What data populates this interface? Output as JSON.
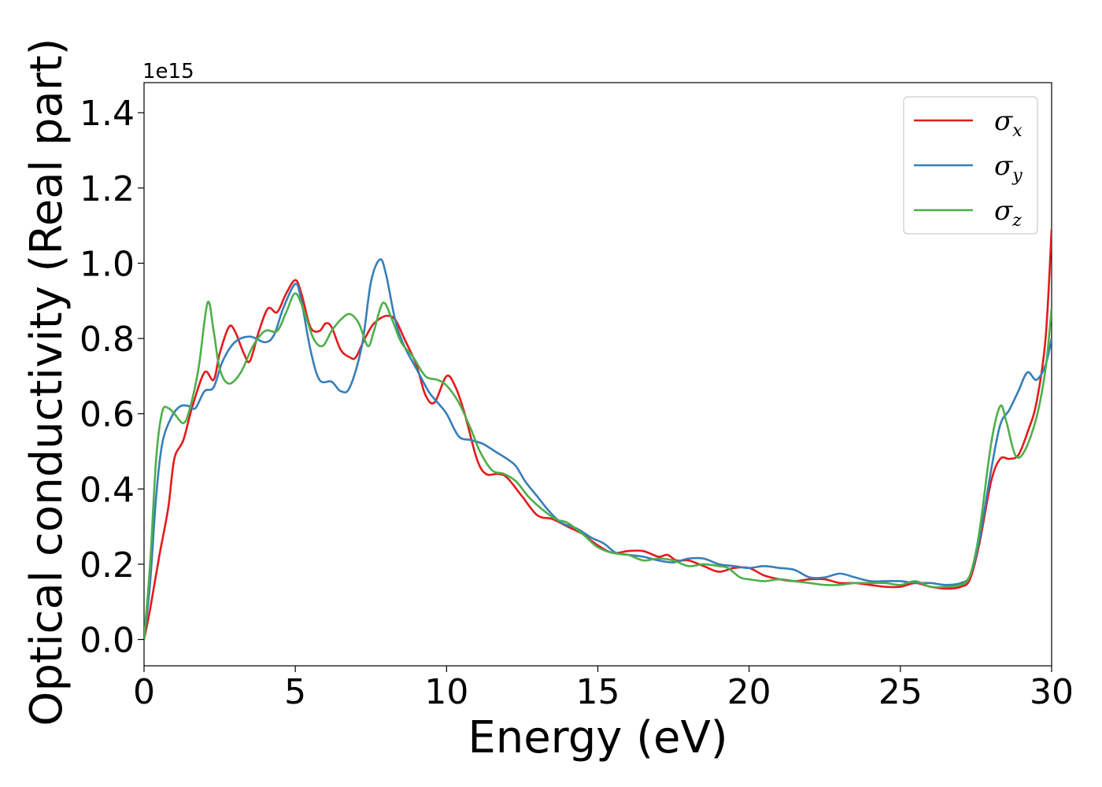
{
  "chart_data": {
    "type": "line",
    "xlabel": "Energy (eV)",
    "ylabel": "Optical conductivity (Real part)",
    "y_offset_label": "1e15",
    "xlim": [
      0,
      30
    ],
    "ylim": [
      -0.07,
      1.48
    ],
    "x_ticks": [
      0,
      5,
      10,
      15,
      20,
      25,
      30
    ],
    "x_tick_labels": [
      "0",
      "5",
      "10",
      "15",
      "20",
      "25",
      "30"
    ],
    "y_ticks": [
      0.0,
      0.2,
      0.4,
      0.6,
      0.8,
      1.0,
      1.2,
      1.4
    ],
    "y_tick_labels": [
      "0.0",
      "0.2",
      "0.4",
      "0.6",
      "0.8",
      "1.0",
      "1.2",
      "1.4"
    ],
    "grid": false,
    "legend_position": "top-right",
    "series": [
      {
        "name": "σ",
        "name_subscript": "x",
        "color": "#e41a1c",
        "points": [
          [
            0,
            0.0
          ],
          [
            0.2,
            0.08
          ],
          [
            0.5,
            0.22
          ],
          [
            0.8,
            0.35
          ],
          [
            1.0,
            0.48
          ],
          [
            1.3,
            0.53
          ],
          [
            1.6,
            0.62
          ],
          [
            2.0,
            0.71
          ],
          [
            2.3,
            0.69
          ],
          [
            2.5,
            0.76
          ],
          [
            2.8,
            0.83
          ],
          [
            3.0,
            0.82
          ],
          [
            3.3,
            0.76
          ],
          [
            3.5,
            0.74
          ],
          [
            3.8,
            0.82
          ],
          [
            4.1,
            0.88
          ],
          [
            4.4,
            0.87
          ],
          [
            4.7,
            0.92
          ],
          [
            5.0,
            0.955
          ],
          [
            5.2,
            0.92
          ],
          [
            5.5,
            0.83
          ],
          [
            5.8,
            0.82
          ],
          [
            6.0,
            0.84
          ],
          [
            6.2,
            0.83
          ],
          [
            6.5,
            0.77
          ],
          [
            6.8,
            0.75
          ],
          [
            7.0,
            0.75
          ],
          [
            7.3,
            0.8
          ],
          [
            7.6,
            0.84
          ],
          [
            8.0,
            0.86
          ],
          [
            8.3,
            0.85
          ],
          [
            8.6,
            0.8
          ],
          [
            9.0,
            0.73
          ],
          [
            9.3,
            0.65
          ],
          [
            9.6,
            0.63
          ],
          [
            10.0,
            0.7
          ],
          [
            10.3,
            0.67
          ],
          [
            10.6,
            0.6
          ],
          [
            11.0,
            0.48
          ],
          [
            11.3,
            0.44
          ],
          [
            11.7,
            0.44
          ],
          [
            12.0,
            0.43
          ],
          [
            12.5,
            0.38
          ],
          [
            13.0,
            0.33
          ],
          [
            13.5,
            0.32
          ],
          [
            14.0,
            0.3
          ],
          [
            14.5,
            0.28
          ],
          [
            15.0,
            0.25
          ],
          [
            15.5,
            0.23
          ],
          [
            16.0,
            0.235
          ],
          [
            16.5,
            0.235
          ],
          [
            17.0,
            0.22
          ],
          [
            17.3,
            0.225
          ],
          [
            17.6,
            0.21
          ],
          [
            18.0,
            0.21
          ],
          [
            18.5,
            0.195
          ],
          [
            19.0,
            0.18
          ],
          [
            19.5,
            0.19
          ],
          [
            20.0,
            0.19
          ],
          [
            20.5,
            0.17
          ],
          [
            21.0,
            0.16
          ],
          [
            21.5,
            0.155
          ],
          [
            22.0,
            0.16
          ],
          [
            22.5,
            0.16
          ],
          [
            23.0,
            0.15
          ],
          [
            23.5,
            0.15
          ],
          [
            24.0,
            0.145
          ],
          [
            24.5,
            0.14
          ],
          [
            25.0,
            0.14
          ],
          [
            25.5,
            0.15
          ],
          [
            26.0,
            0.14
          ],
          [
            26.5,
            0.135
          ],
          [
            27.0,
            0.14
          ],
          [
            27.3,
            0.16
          ],
          [
            27.6,
            0.25
          ],
          [
            28.0,
            0.42
          ],
          [
            28.3,
            0.48
          ],
          [
            28.6,
            0.48
          ],
          [
            28.9,
            0.49
          ],
          [
            29.2,
            0.55
          ],
          [
            29.5,
            0.63
          ],
          [
            29.8,
            0.8
          ],
          [
            30.0,
            1.09
          ]
        ]
      },
      {
        "name": "σ",
        "name_subscript": "y",
        "color": "#377eb8",
        "points": [
          [
            0,
            0.0
          ],
          [
            0.2,
            0.15
          ],
          [
            0.4,
            0.38
          ],
          [
            0.6,
            0.52
          ],
          [
            0.9,
            0.59
          ],
          [
            1.2,
            0.62
          ],
          [
            1.5,
            0.62
          ],
          [
            1.7,
            0.615
          ],
          [
            2.0,
            0.66
          ],
          [
            2.3,
            0.67
          ],
          [
            2.6,
            0.74
          ],
          [
            3.0,
            0.79
          ],
          [
            3.5,
            0.805
          ],
          [
            4.0,
            0.79
          ],
          [
            4.3,
            0.81
          ],
          [
            4.6,
            0.88
          ],
          [
            5.0,
            0.945
          ],
          [
            5.2,
            0.9
          ],
          [
            5.5,
            0.77
          ],
          [
            5.8,
            0.69
          ],
          [
            6.2,
            0.685
          ],
          [
            6.5,
            0.66
          ],
          [
            6.8,
            0.67
          ],
          [
            7.2,
            0.78
          ],
          [
            7.5,
            0.95
          ],
          [
            7.8,
            1.01
          ],
          [
            8.0,
            0.97
          ],
          [
            8.3,
            0.85
          ],
          [
            8.6,
            0.78
          ],
          [
            9.0,
            0.72
          ],
          [
            9.4,
            0.66
          ],
          [
            9.7,
            0.63
          ],
          [
            10.0,
            0.6
          ],
          [
            10.4,
            0.54
          ],
          [
            10.8,
            0.53
          ],
          [
            11.2,
            0.52
          ],
          [
            11.6,
            0.5
          ],
          [
            12.0,
            0.48
          ],
          [
            12.3,
            0.46
          ],
          [
            12.6,
            0.42
          ],
          [
            13.0,
            0.38
          ],
          [
            13.4,
            0.34
          ],
          [
            13.8,
            0.31
          ],
          [
            14.3,
            0.295
          ],
          [
            14.8,
            0.27
          ],
          [
            15.2,
            0.255
          ],
          [
            15.6,
            0.23
          ],
          [
            16.0,
            0.225
          ],
          [
            16.5,
            0.22
          ],
          [
            17.0,
            0.21
          ],
          [
            17.5,
            0.205
          ],
          [
            18.0,
            0.215
          ],
          [
            18.5,
            0.215
          ],
          [
            19.0,
            0.2
          ],
          [
            19.5,
            0.195
          ],
          [
            20.0,
            0.19
          ],
          [
            20.5,
            0.195
          ],
          [
            21.0,
            0.19
          ],
          [
            21.5,
            0.185
          ],
          [
            22.0,
            0.165
          ],
          [
            22.5,
            0.165
          ],
          [
            23.0,
            0.175
          ],
          [
            23.5,
            0.165
          ],
          [
            24.0,
            0.155
          ],
          [
            24.5,
            0.155
          ],
          [
            25.0,
            0.155
          ],
          [
            25.5,
            0.15
          ],
          [
            26.0,
            0.15
          ],
          [
            26.5,
            0.145
          ],
          [
            27.0,
            0.15
          ],
          [
            27.3,
            0.17
          ],
          [
            27.6,
            0.26
          ],
          [
            28.0,
            0.45
          ],
          [
            28.3,
            0.57
          ],
          [
            28.6,
            0.61
          ],
          [
            28.9,
            0.66
          ],
          [
            29.2,
            0.71
          ],
          [
            29.5,
            0.69
          ],
          [
            29.8,
            0.73
          ],
          [
            30.0,
            0.8
          ]
        ]
      },
      {
        "name": "σ",
        "name_subscript": "z",
        "color": "#4daf4a",
        "points": [
          [
            0,
            0.0
          ],
          [
            0.2,
            0.2
          ],
          [
            0.4,
            0.48
          ],
          [
            0.6,
            0.605
          ],
          [
            0.8,
            0.615
          ],
          [
            1.0,
            0.6
          ],
          [
            1.3,
            0.575
          ],
          [
            1.5,
            0.61
          ],
          [
            1.8,
            0.72
          ],
          [
            2.1,
            0.895
          ],
          [
            2.3,
            0.82
          ],
          [
            2.5,
            0.72
          ],
          [
            2.8,
            0.68
          ],
          [
            3.2,
            0.71
          ],
          [
            3.6,
            0.78
          ],
          [
            4.0,
            0.82
          ],
          [
            4.4,
            0.82
          ],
          [
            4.7,
            0.87
          ],
          [
            5.0,
            0.92
          ],
          [
            5.3,
            0.87
          ],
          [
            5.6,
            0.8
          ],
          [
            5.9,
            0.78
          ],
          [
            6.2,
            0.82
          ],
          [
            6.5,
            0.85
          ],
          [
            6.8,
            0.865
          ],
          [
            7.1,
            0.84
          ],
          [
            7.4,
            0.78
          ],
          [
            7.6,
            0.82
          ],
          [
            7.9,
            0.895
          ],
          [
            8.2,
            0.85
          ],
          [
            8.5,
            0.79
          ],
          [
            8.9,
            0.75
          ],
          [
            9.3,
            0.7
          ],
          [
            9.7,
            0.69
          ],
          [
            10.0,
            0.675
          ],
          [
            10.4,
            0.63
          ],
          [
            10.8,
            0.56
          ],
          [
            11.1,
            0.5
          ],
          [
            11.5,
            0.45
          ],
          [
            11.9,
            0.44
          ],
          [
            12.3,
            0.42
          ],
          [
            12.7,
            0.38
          ],
          [
            13.1,
            0.35
          ],
          [
            13.6,
            0.32
          ],
          [
            14.0,
            0.31
          ],
          [
            14.5,
            0.28
          ],
          [
            15.0,
            0.245
          ],
          [
            15.5,
            0.23
          ],
          [
            16.0,
            0.225
          ],
          [
            16.5,
            0.21
          ],
          [
            17.0,
            0.215
          ],
          [
            17.5,
            0.21
          ],
          [
            18.0,
            0.195
          ],
          [
            18.5,
            0.2
          ],
          [
            19.0,
            0.195
          ],
          [
            19.3,
            0.19
          ],
          [
            19.7,
            0.165
          ],
          [
            20.0,
            0.16
          ],
          [
            20.5,
            0.155
          ],
          [
            21.0,
            0.16
          ],
          [
            21.5,
            0.155
          ],
          [
            22.0,
            0.15
          ],
          [
            22.5,
            0.145
          ],
          [
            23.0,
            0.145
          ],
          [
            23.5,
            0.15
          ],
          [
            24.0,
            0.15
          ],
          [
            24.5,
            0.15
          ],
          [
            25.0,
            0.145
          ],
          [
            25.5,
            0.155
          ],
          [
            26.0,
            0.14
          ],
          [
            26.5,
            0.14
          ],
          [
            27.0,
            0.145
          ],
          [
            27.3,
            0.17
          ],
          [
            27.6,
            0.28
          ],
          [
            28.0,
            0.52
          ],
          [
            28.3,
            0.62
          ],
          [
            28.5,
            0.58
          ],
          [
            28.8,
            0.49
          ],
          [
            29.1,
            0.5
          ],
          [
            29.5,
            0.59
          ],
          [
            29.8,
            0.72
          ],
          [
            30.0,
            0.88
          ]
        ]
      }
    ]
  }
}
